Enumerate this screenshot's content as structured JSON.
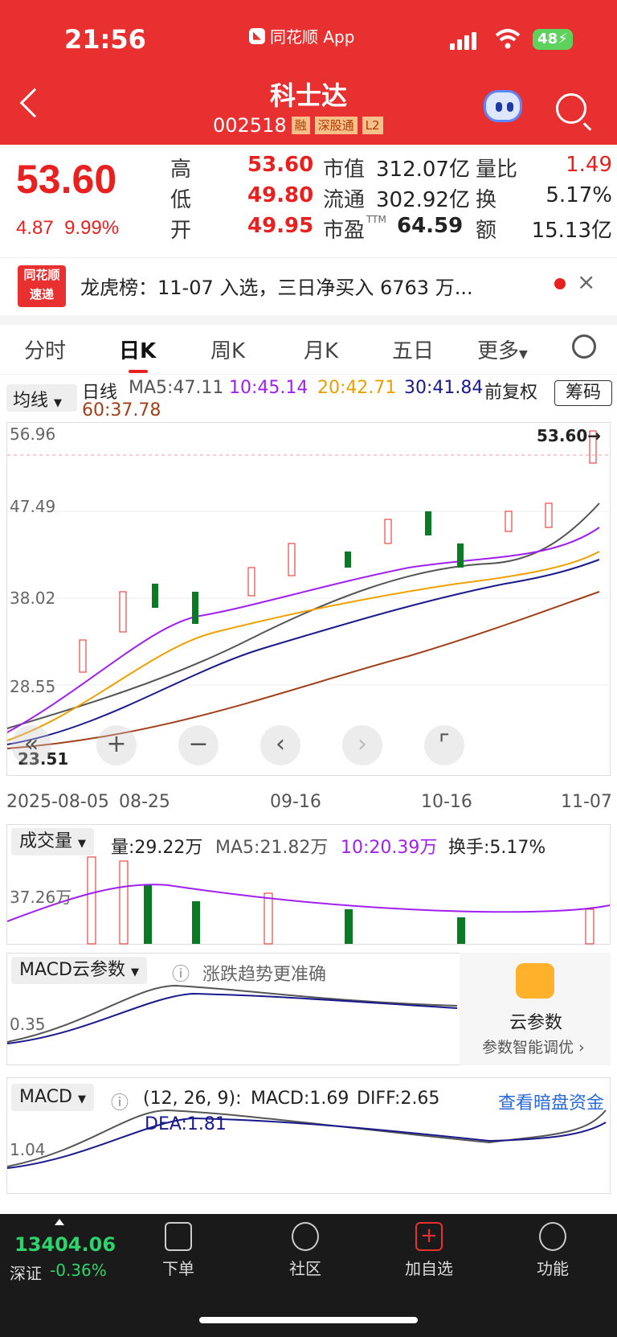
{
  "status": {
    "time": "21:56",
    "app": "同花顺 App",
    "battery": "48"
  },
  "header": {
    "name": "科士达",
    "code": "002518",
    "tags": [
      "融",
      "深股通",
      "L2"
    ]
  },
  "quote": {
    "price": "53.60",
    "change": "4.87",
    "change_pct": "9.99%",
    "rows": [
      [
        {
          "l": "高",
          "v": "53.60"
        },
        {
          "l": "市值",
          "v": "312.07亿"
        },
        {
          "l": "量比",
          "v": "1.49"
        }
      ],
      [
        {
          "l": "低",
          "v": "49.80"
        },
        {
          "l": "流通",
          "v": "302.92亿"
        },
        {
          "l": "换",
          "v": "5.17%"
        }
      ],
      [
        {
          "l": "开",
          "v": "49.95"
        },
        {
          "l": "市盈",
          "v": "64.59",
          "sup": "TTM"
        },
        {
          "l": "额",
          "v": "15.13亿"
        }
      ]
    ]
  },
  "banner": {
    "logo_top": "同花顺",
    "logo_bottom": "速递",
    "text": "龙虎榜：11-07 入选，三日净买入 6763 万..."
  },
  "tabs": [
    "分时",
    "日K",
    "周K",
    "月K",
    "五日",
    "更多"
  ],
  "ma": {
    "select": "均线",
    "period": "日线",
    "ma5": "MA5:47.11",
    "ma10": "10:45.14",
    "ma20": "20:42.71",
    "ma30": "30:41.84",
    "ma60": "60:37.78",
    "adjust": "前复权",
    "chip": "筹码"
  },
  "kline": {
    "y_labels": [
      "56.96",
      "47.49",
      "38.02",
      "28.55"
    ],
    "last": "53.60→",
    "low": "23.51",
    "dates": [
      "2025-08-05",
      "08-25",
      "09-16",
      "10-16",
      "11-07"
    ]
  },
  "volume": {
    "select": "成交量",
    "vol": "量:29.22万",
    "ma5": "MA5:21.82万",
    "ma10": "10:20.39万",
    "turnover": "换手:5.17%",
    "y": "37.26万"
  },
  "macd_cloud": {
    "select": "MACD云参数",
    "hint": "涨跌趋势更准确",
    "y": "0.35",
    "title": "云参数",
    "sub": "参数智能调优 ›"
  },
  "macd": {
    "select": "MACD",
    "params": "(12, 26, 9):",
    "macd": "MACD:1.69",
    "diff": "DIFF:2.65",
    "dea": "DEA:1.81",
    "link": "查看暗盘资金",
    "y": "1.04"
  },
  "index": {
    "value": "13404.06",
    "name": "深证",
    "chg": "-0.36%"
  },
  "nav": [
    "下单",
    "社区",
    "加自选",
    "功能"
  ],
  "colors": {
    "brand": "#e93030",
    "up": "#e8201f",
    "down": "#0a7a24",
    "ma5": "#555555",
    "ma10": "#a020f0",
    "ma20": "#f0a000",
    "ma30": "#1a1a8c",
    "ma60": "#a0401a",
    "link": "#2a6ad8"
  }
}
